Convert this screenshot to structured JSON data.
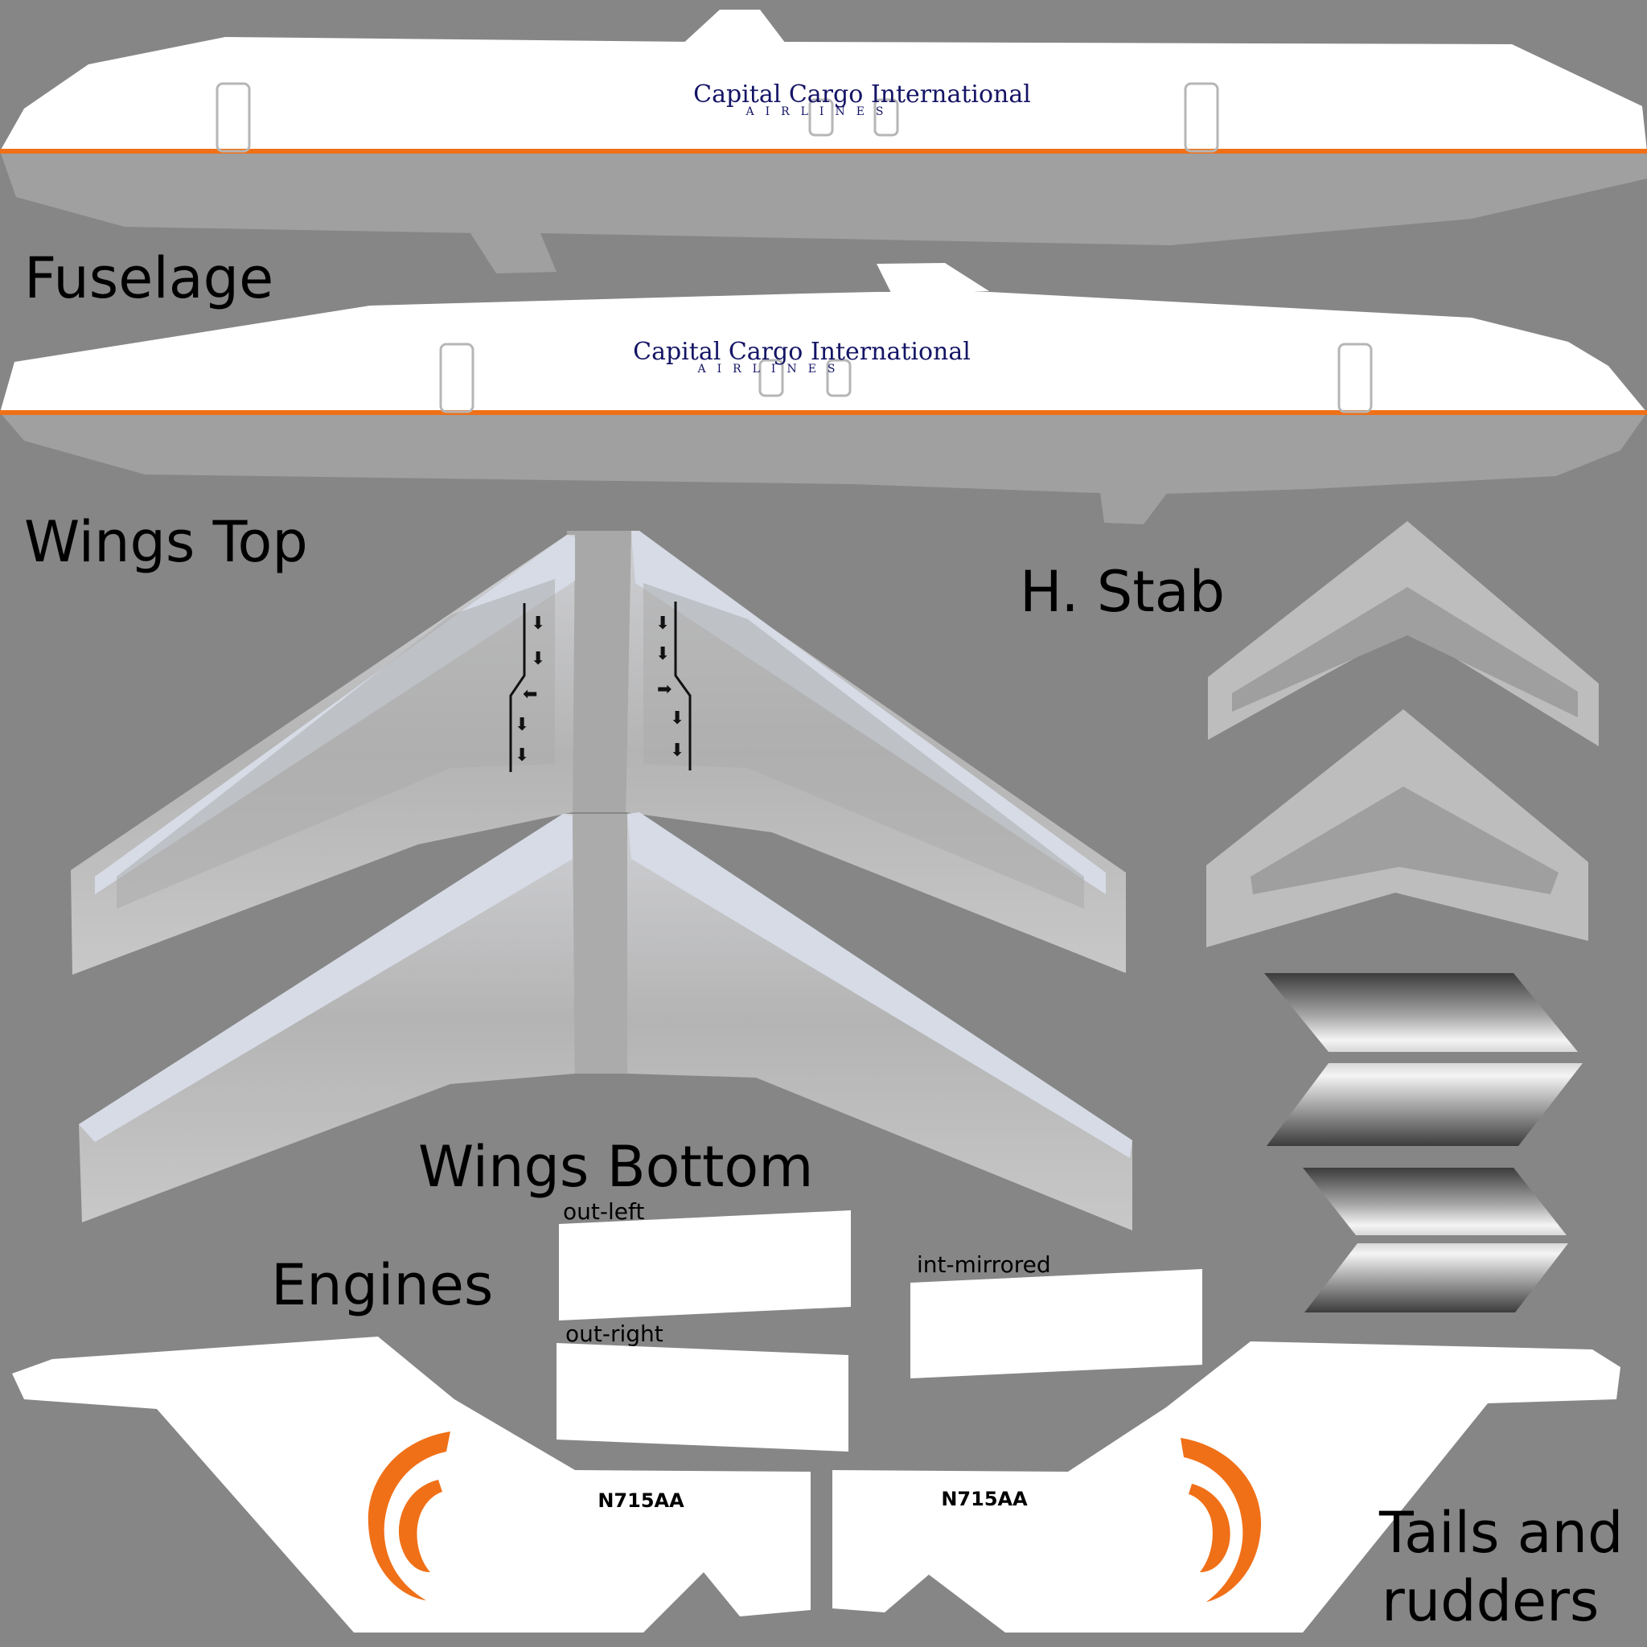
{
  "labels": {
    "fuselage": "Fuselage",
    "wings_top": "Wings Top",
    "h_stab": "H. Stab",
    "wings_bottom": "Wings Bottom",
    "engines": "Engines",
    "tails_line1": "Tails and",
    "tails_line2": "rudders"
  },
  "engine_panels": {
    "out_left": "out-left",
    "out_right": "out-right",
    "int_mirrored": "int-mirrored"
  },
  "livery": {
    "airline_name": "Capital Cargo International",
    "airline_sub": "AIRLINES",
    "registration": "N715AA",
    "accent_color": "#f07018",
    "text_color": "#141466",
    "body_color": "#ffffff",
    "belly_color": "#a0a0a0",
    "background_color": "#868686"
  }
}
